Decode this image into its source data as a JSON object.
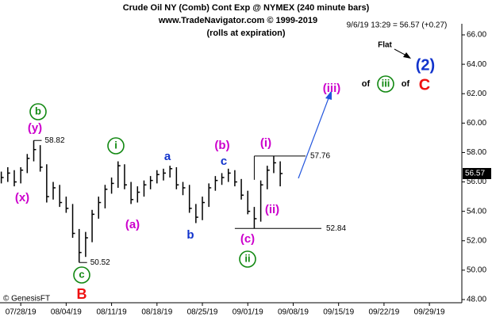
{
  "chart_data": {
    "type": "ohlc",
    "title": "Crude Oil NY (Comb) Cont Exp @ NYMEX  (240 minute bars)",
    "subtitle": "www.TradeNavigator.com © 1999-2019",
    "note": "(rolls at expiration)",
    "quote": "9/6/19 13:29 = 56.57 (+0.27)",
    "credit": "© GenesisFT",
    "x": [
      -3,
      -2,
      -1,
      0,
      1,
      2,
      3,
      4,
      5,
      6,
      7,
      8,
      9,
      10,
      11,
      12,
      13,
      14,
      15,
      16,
      17,
      18,
      19,
      20,
      21,
      22,
      23,
      24,
      25,
      26,
      27,
      28,
      29,
      30,
      31,
      32,
      33,
      34,
      35,
      36,
      37,
      38,
      39,
      40
    ],
    "high": [
      56.7,
      57.0,
      56.8,
      57.0,
      57.9,
      58.82,
      58.5,
      57.2,
      56.0,
      55.8,
      55.0,
      54.5,
      52.8,
      52.6,
      54.1,
      55.0,
      55.8,
      56.3,
      57.4,
      57.2,
      56.0,
      55.7,
      56.1,
      56.4,
      56.8,
      56.9,
      57.1,
      57.0,
      56.0,
      55.8,
      54.5,
      55.0,
      55.9,
      56.4,
      56.6,
      56.9,
      56.8,
      56.2,
      55.4,
      54.3,
      56.1,
      57.1,
      57.76,
      57.4
    ],
    "low": [
      55.9,
      56.0,
      55.7,
      55.9,
      56.6,
      57.4,
      56.7,
      54.6,
      54.8,
      54.3,
      53.9,
      52.2,
      50.52,
      50.9,
      51.9,
      53.5,
      54.2,
      55.2,
      55.6,
      55.5,
      54.5,
      54.6,
      55.0,
      55.5,
      55.9,
      56.1,
      56.3,
      55.5,
      55.1,
      53.9,
      53.2,
      53.4,
      54.3,
      55.4,
      55.8,
      56.0,
      55.7,
      54.8,
      53.8,
      52.84,
      53.3,
      55.5,
      56.6,
      55.7
    ],
    "close": [
      56.3,
      56.6,
      56.0,
      56.8,
      57.6,
      58.2,
      57.0,
      55.0,
      55.6,
      54.6,
      54.2,
      52.5,
      51.2,
      52.2,
      53.8,
      54.6,
      55.5,
      55.9,
      57.1,
      55.8,
      54.8,
      55.3,
      55.8,
      56.1,
      56.5,
      56.6,
      56.9,
      55.8,
      55.6,
      54.2,
      53.6,
      54.6,
      55.6,
      56.1,
      56.3,
      56.6,
      56.0,
      55.1,
      54.0,
      53.5,
      55.8,
      56.8,
      57.3,
      56.57
    ],
    "color": "#000000",
    "xlim": [
      -3.2,
      68
    ],
    "xticks": [
      {
        "value": 0,
        "label": "07/28/19"
      },
      {
        "value": 7,
        "label": "08/04/19"
      },
      {
        "value": 14,
        "label": "08/11/19"
      },
      {
        "value": 21,
        "label": "08/18/19"
      },
      {
        "value": 28,
        "label": "08/25/19"
      },
      {
        "value": 35,
        "label": "09/01/19"
      },
      {
        "value": 42,
        "label": "09/08/19"
      },
      {
        "value": 49,
        "label": "09/15/19"
      },
      {
        "value": 56,
        "label": "09/22/19"
      },
      {
        "value": 63,
        "label": "09/29/19"
      }
    ],
    "ylim": [
      48,
      66
    ],
    "yticks": [
      {
        "value": 48,
        "label": "48.00"
      },
      {
        "value": 50,
        "label": "50.00"
      },
      {
        "value": 52,
        "label": "52.00"
      },
      {
        "value": 54,
        "label": "54.00"
      },
      {
        "value": 56,
        "label": "56.00"
      },
      {
        "value": 58,
        "label": "58.00"
      },
      {
        "value": 60,
        "label": "60.00"
      },
      {
        "value": 62,
        "label": "62.00"
      },
      {
        "value": 64,
        "label": "64.00"
      },
      {
        "value": 66,
        "label": "66.00"
      }
    ],
    "price_labels": [
      58.82,
      50.52
    ],
    "levels": [
      57.76,
      52.84
    ],
    "annotations": [
      "(y)",
      "b",
      "(x)",
      "c",
      "B",
      "(a)",
      "i",
      "a",
      "b",
      "(b)",
      "c",
      "(i)",
      "(ii)",
      "(c)",
      "ii",
      "(iii)",
      "of",
      "iii",
      "of",
      "C",
      "(2)",
      "Flat"
    ]
  }
}
